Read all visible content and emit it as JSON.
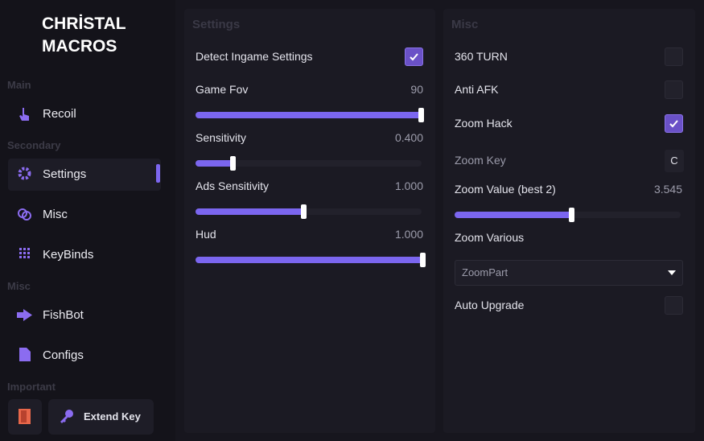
{
  "sidebar": {
    "title": [
      "CHRİSTAL",
      "MACROS"
    ],
    "sections": [
      {
        "label": "Main",
        "items": [
          "Recoil"
        ]
      },
      {
        "label": "Secondary",
        "items": [
          "Settings",
          "Misc",
          "KeyBinds"
        ]
      },
      {
        "label": "Misc",
        "items": [
          "FishBot",
          "Configs"
        ]
      },
      {
        "label": "Important",
        "items": [
          "Extend Key"
        ]
      }
    ]
  },
  "settings_panel": {
    "title": "Settings",
    "rows": [
      {
        "label": "Detect Ingame Settings",
        "checked": true
      },
      {
        "label": "Game Fov",
        "value": "90"
      },
      {
        "label": "Sensitivity",
        "value": "0.400"
      },
      {
        "label": "Ads Sensitivity",
        "value": "1.000"
      },
      {
        "label": "Hud",
        "value": "1.000"
      }
    ]
  },
  "misc_panel": {
    "title": "Misc",
    "rows": [
      {
        "label": "360 TURN",
        "checked": false
      },
      {
        "label": "Anti AFK",
        "checked": false
      },
      {
        "label": "Zoom Hack",
        "checked": true
      },
      {
        "label": "Zoom Key",
        "key": "C"
      },
      {
        "label": "Zoom Value (best 2)",
        "value": "3.545"
      },
      {
        "label": "Zoom Various",
        "selected": "ZoomPart"
      },
      {
        "label": "Auto Upgrade",
        "checked": false
      }
    ]
  }
}
